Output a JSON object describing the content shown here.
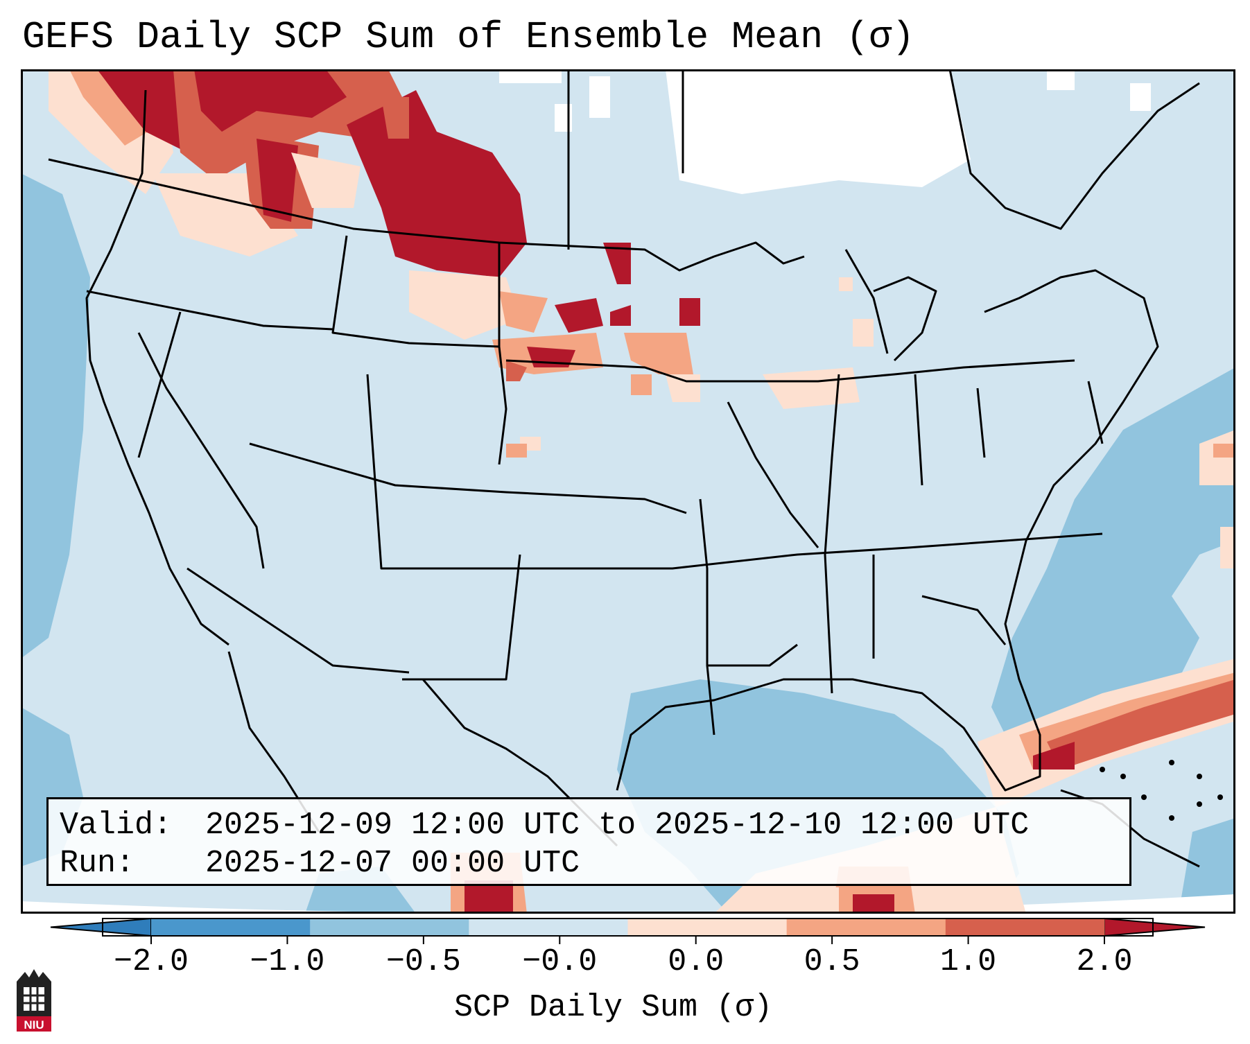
{
  "title": "GEFS Daily SCP Sum of Ensemble Mean (σ)",
  "info": {
    "valid_label": "Valid:",
    "valid_value": "2025-12-09 12:00 UTC to 2025-12-10 12:00 UTC",
    "run_label": "Run:",
    "run_value": "2025-12-07 00:00 UTC"
  },
  "colorbar": {
    "label": "SCP Daily Sum (σ)",
    "ticks": [
      "−2.0",
      "−1.0",
      "−0.5",
      "−0.0",
      "0.0",
      "0.5",
      "1.0",
      "2.0"
    ],
    "colors": [
      "#2f7dbb",
      "#4a97cc",
      "#91c4de",
      "#d2e5f0",
      "#fde0d0",
      "#f4a583",
      "#d6604d",
      "#b2182b"
    ]
  },
  "logo": {
    "text": "NIU"
  }
}
